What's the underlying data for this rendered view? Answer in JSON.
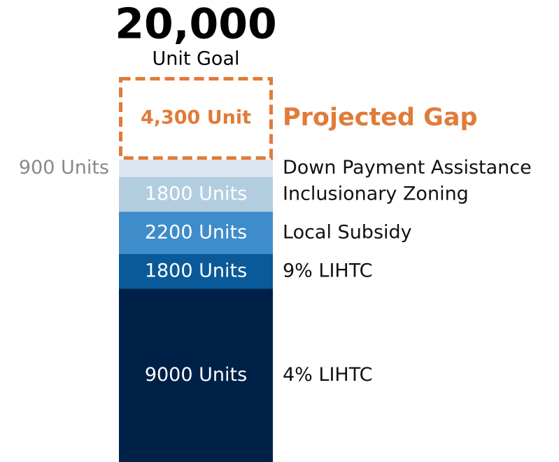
{
  "chart_data": {
    "type": "stacked-bar",
    "title": "20,000",
    "subtitle": "Unit Goal",
    "ylim": [
      0,
      20000
    ],
    "series": [
      {
        "name": "4% LIHTC",
        "color": "#002147",
        "values": [
          9000
        ],
        "value_labels": [
          "9000 Units"
        ],
        "label_color": "#ffffff"
      },
      {
        "name": "9% LIHTC",
        "color": "#0a5a99",
        "values": [
          1800
        ],
        "value_labels": [
          "1800 Units"
        ],
        "label_color": "#ffffff"
      },
      {
        "name": "Local Subsidy",
        "color": "#3f8ccb",
        "values": [
          2200
        ],
        "value_labels": [
          "2200 Units"
        ],
        "label_color": "#ffffff"
      },
      {
        "name": "Inclusionary Zoning",
        "color": "#b3cde0",
        "values": [
          1800
        ],
        "value_labels": [
          "1800 Units"
        ],
        "label_color": "#ffffff"
      },
      {
        "name": "Down Payment Assistance",
        "color": "#dce6f0",
        "values": [
          900
        ],
        "value_labels": [
          "900 Units"
        ],
        "label_color": "#888888",
        "label_position": "left"
      },
      {
        "name": "Projected Gap",
        "color": "#e07b39",
        "values": [
          4300
        ],
        "value_labels": [
          "4,300 Unit"
        ],
        "label_color": "#e07b39",
        "dashed": true
      }
    ]
  }
}
